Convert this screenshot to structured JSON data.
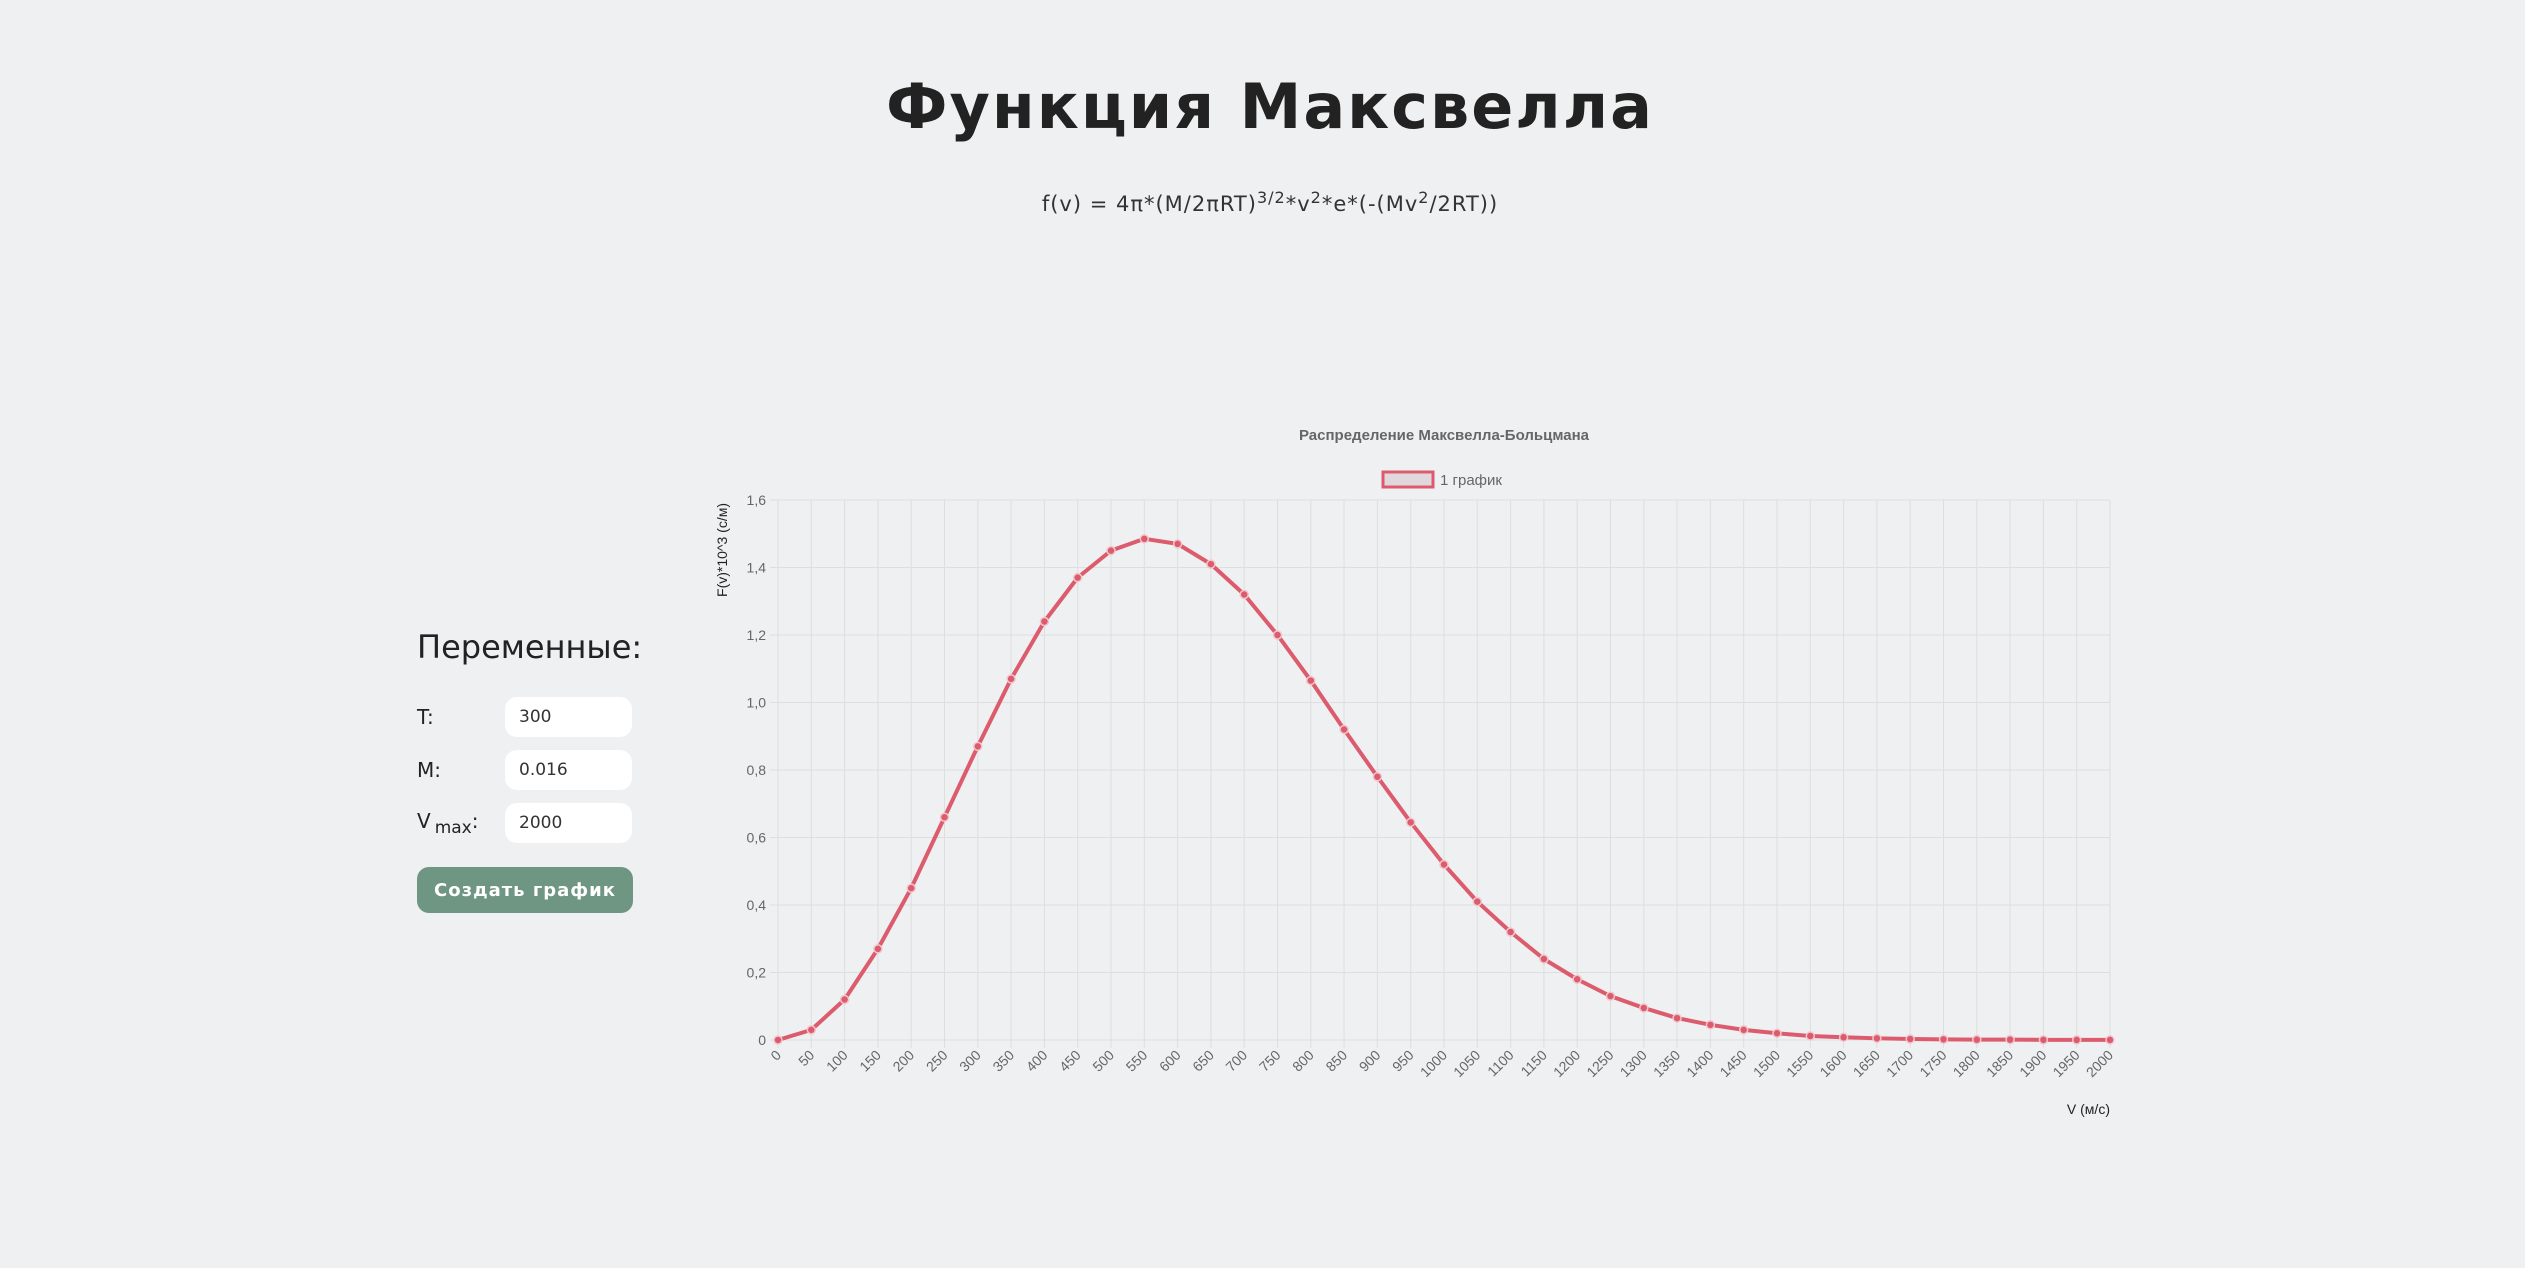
{
  "page": {
    "title": "Функция Максвелла",
    "formula": {
      "part1": "f(v) = 4π*(M/2πRT)",
      "sup1": "3/2",
      "part2": "*v",
      "sup2": "2",
      "part3": "*e*(-(Mv",
      "sup3": "2",
      "part4": "/2RT))"
    }
  },
  "variables": {
    "title": "Переменные:",
    "t_label": "T:",
    "t_value": "300",
    "m_label": "M:",
    "m_value": "0.016",
    "v_label": "V",
    "v_sub": "max",
    "v_suffix": ":",
    "v_value": "2000",
    "button_label": "Создать график"
  },
  "chart_data": {
    "type": "line",
    "title": "Распределение Максвелла-Больцмана",
    "xlabel": "V (м/с)",
    "ylabel": "F(v)*10^3 (с/м)",
    "legend": "top",
    "grid": true,
    "ylim": [
      0,
      1.6
    ],
    "yticks": [
      "0",
      "0,2",
      "0,4",
      "0,6",
      "0,8",
      "1,0",
      "1,2",
      "1,4",
      "1,6"
    ],
    "x": [
      0,
      50,
      100,
      150,
      200,
      250,
      300,
      350,
      400,
      450,
      500,
      550,
      600,
      650,
      700,
      750,
      800,
      850,
      900,
      950,
      1000,
      1050,
      1100,
      1150,
      1200,
      1250,
      1300,
      1350,
      1400,
      1450,
      1500,
      1550,
      1600,
      1650,
      1700,
      1750,
      1800,
      1850,
      1900,
      1950,
      2000
    ],
    "series": [
      {
        "name": "1 график",
        "color": "#dc5c6e",
        "values": [
          0,
          0.03,
          0.12,
          0.27,
          0.45,
          0.66,
          0.87,
          1.07,
          1.24,
          1.37,
          1.45,
          1.485,
          1.47,
          1.41,
          1.32,
          1.2,
          1.065,
          0.92,
          0.78,
          0.645,
          0.52,
          0.41,
          0.32,
          0.24,
          0.18,
          0.13,
          0.095,
          0.065,
          0.045,
          0.03,
          0.02,
          0.012,
          0.008,
          0.005,
          0.003,
          0.002,
          0.001,
          0.001,
          0.0005,
          0.0003,
          0.0002
        ]
      }
    ],
    "colors": {
      "grid": "#dedede",
      "axis_text": "#666666",
      "title_text": "#666666",
      "legend_fill": "#e0d8dc"
    }
  }
}
